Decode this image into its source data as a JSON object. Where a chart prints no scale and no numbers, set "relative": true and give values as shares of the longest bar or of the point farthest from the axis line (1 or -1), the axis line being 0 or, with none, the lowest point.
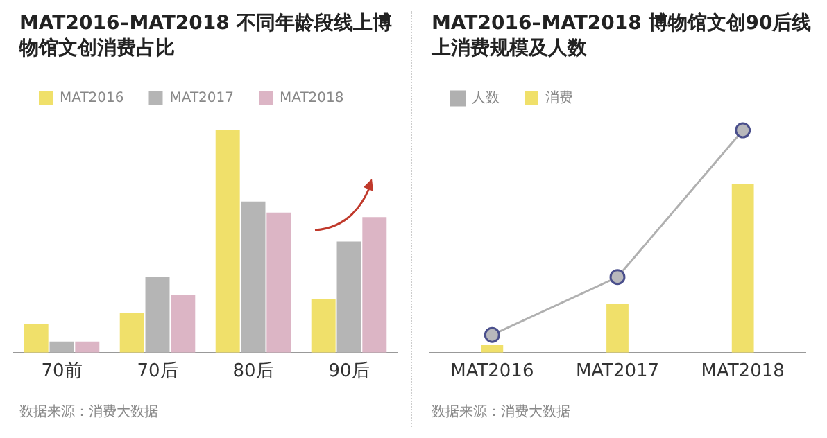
{
  "chart_data": [
    {
      "type": "bar",
      "title": "MAT2016–MAT2018 不同年龄段线上博物馆文创消费占比",
      "categories": [
        "70前",
        "70后",
        "80后",
        "90后"
      ],
      "relative": true,
      "legend": "top left",
      "grid": false,
      "series": [
        {
          "name": "MAT2016",
          "color": "#f0e06a",
          "values": [
            0.13,
            0.18,
            1,
            0.24
          ]
        },
        {
          "name": "MAT2017",
          "color": "#b5b5b5",
          "values": [
            0.05,
            0.34,
            0.68,
            0.5
          ]
        },
        {
          "name": "MAT2018",
          "color": "#dcb5c5",
          "values": [
            0.05,
            0.26,
            0.63,
            0.61
          ]
        }
      ],
      "annotations": [
        "数据来源：消费大数据"
      ]
    },
    {
      "type": "bar",
      "title": "MAT2016–MAT2018 博物馆文创90后线上消费规模及人数",
      "categories": [
        "MAT2016",
        "MAT2017",
        "MAT2018"
      ],
      "relative": true,
      "legend": "top left",
      "grid": false,
      "marker": "circle",
      "series": [
        {
          "name": "消费",
          "type": "bar",
          "color": "#f0e06a",
          "values": [
            0.034,
            0.22,
            0.76
          ]
        },
        {
          "name": "人数",
          "type": "line",
          "color": "#b0b0b0",
          "values": [
            0.08,
            0.34,
            1
          ]
        }
      ],
      "annotations": [
        "数据来源：消费大数据"
      ]
    }
  ]
}
